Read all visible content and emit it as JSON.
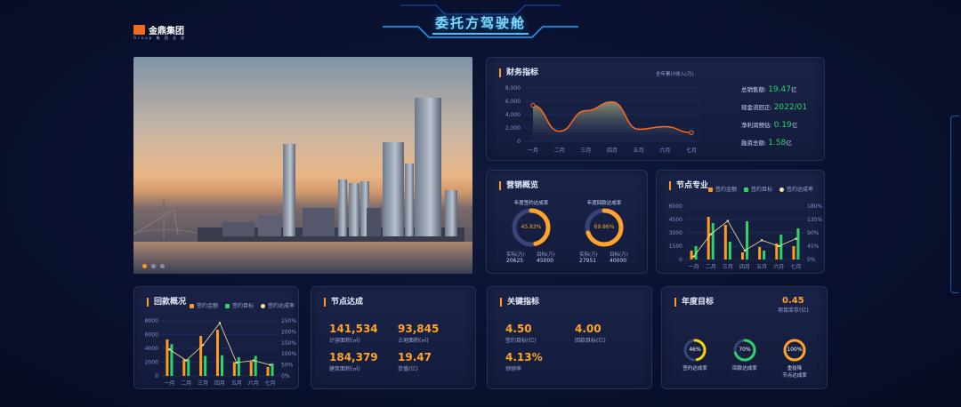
{
  "header": {
    "logo_text": "金鼎集团",
    "logo_sub": "Group 集 团 总 部",
    "title": "委托方驾驶舱"
  },
  "finance": {
    "title": "财务指标",
    "chart_caption": "全年累计收入(万)",
    "kpis": [
      {
        "label": "总销售额:",
        "value": "19.47",
        "unit": "亿"
      },
      {
        "label": "现金流回正:",
        "value": "2022/01",
        "unit": ""
      },
      {
        "label": "净利润预估:",
        "value": "0.19",
        "unit": "亿"
      },
      {
        "label": "融资总额:",
        "value": "1.58",
        "unit": "亿"
      }
    ],
    "chart_data": {
      "type": "area",
      "categories": [
        "一月",
        "二月",
        "三月",
        "四月",
        "五月",
        "六月",
        "七月"
      ],
      "values": [
        5400,
        1500,
        4600,
        5900,
        1800,
        2200,
        1300
      ],
      "y_ticks": [
        "8,000",
        "6,000",
        "4,000",
        "2,000",
        "0"
      ],
      "ylim": [
        0,
        8000
      ],
      "color": "#ff6a1a"
    }
  },
  "marketing": {
    "title": "营销概览",
    "rings": [
      {
        "caption": "年度签约达成率",
        "value": "45.83%",
        "percent": 45.83,
        "actual_label": "实际(万)",
        "actual": "20625",
        "target_label": "目标(万)",
        "target": "45000"
      },
      {
        "caption": "年度回款达成率",
        "value": "69.86%",
        "percent": 69.86,
        "actual_label": "实际(万)",
        "actual": "27951",
        "target_label": "目标(万)",
        "target": "40000"
      }
    ]
  },
  "node_pro": {
    "title": "节点专业",
    "legend": [
      "签约金额",
      "签约目标",
      "签约达成率"
    ],
    "chart_data": {
      "type": "bar",
      "categories": [
        "一月",
        "二月",
        "三月",
        "四月",
        "五月",
        "六月",
        "七月"
      ],
      "series": [
        {
          "name": "签约金额",
          "values": [
            1000,
            4800,
            3900,
            800,
            1400,
            1800,
            1500
          ]
        },
        {
          "name": "签约目标",
          "values": [
            1500,
            4100,
            2000,
            4300,
            1000,
            2800,
            3500
          ]
        },
        {
          "name": "签约达成率",
          "values": [
            10,
            85,
            130,
            30,
            65,
            45,
            70
          ]
        }
      ],
      "y_ticks": [
        "6000",
        "4500",
        "3000",
        "1500",
        "0"
      ],
      "y2_ticks": [
        "180%",
        "135%",
        "90%",
        "45%",
        "0%"
      ],
      "ylim": [
        0,
        6000
      ],
      "y2lim": [
        0,
        180
      ]
    }
  },
  "payback": {
    "title": "回款概况",
    "legend": [
      "签约金额",
      "签约目标",
      "签约达成率"
    ],
    "chart_data": {
      "type": "bar",
      "categories": [
        "一月",
        "二月",
        "三月",
        "四月",
        "五月",
        "六月",
        "七月"
      ],
      "series": [
        {
          "name": "签约金额",
          "values": [
            5300,
            2400,
            5800,
            6700,
            2000,
            2100,
            1300
          ]
        },
        {
          "name": "签约目标",
          "values": [
            4600,
            2400,
            2900,
            3000,
            2700,
            2900,
            1800
          ]
        },
        {
          "name": "签约达成率",
          "values": [
            120,
            70,
            140,
            240,
            60,
            70,
            50
          ]
        }
      ],
      "y_ticks": [
        "8000",
        "6000",
        "4000",
        "2000",
        "0"
      ],
      "y2_ticks": [
        "250%",
        "200%",
        "150%",
        "100%",
        "50%",
        "0%"
      ],
      "ylim": [
        0,
        8000
      ],
      "y2lim": [
        0,
        250
      ]
    }
  },
  "nodes": {
    "title": "节点达成",
    "items": [
      {
        "value": "141,534",
        "label": "计容面积(㎡)"
      },
      {
        "value": "93,845",
        "label": "占地面积(㎡)"
      },
      {
        "value": "184,379",
        "label": "建筑面积(㎡)"
      },
      {
        "value": "19.47",
        "label": "货值(亿)"
      }
    ]
  },
  "key": {
    "title": "关键指标",
    "items": [
      {
        "value": "4.50",
        "label": "签约目标(亿)"
      },
      {
        "value": "4.00",
        "label": "回款目标(亿)"
      },
      {
        "value": "4.13%",
        "label": "预销率"
      }
    ]
  },
  "annual": {
    "title": "年度目标",
    "top_value": "0.45",
    "top_label": "项目库存(亿)",
    "rings": [
      {
        "value": "46%",
        "percent": 46,
        "label": "签约达成率",
        "color": "#f5d40a"
      },
      {
        "value": "70%",
        "percent": 70,
        "label": "回款达成率",
        "color": "#2bd46a"
      },
      {
        "value": "100%",
        "percent": 100,
        "label": "重投降\n节点达成率",
        "color": "#ffa32a"
      }
    ]
  }
}
